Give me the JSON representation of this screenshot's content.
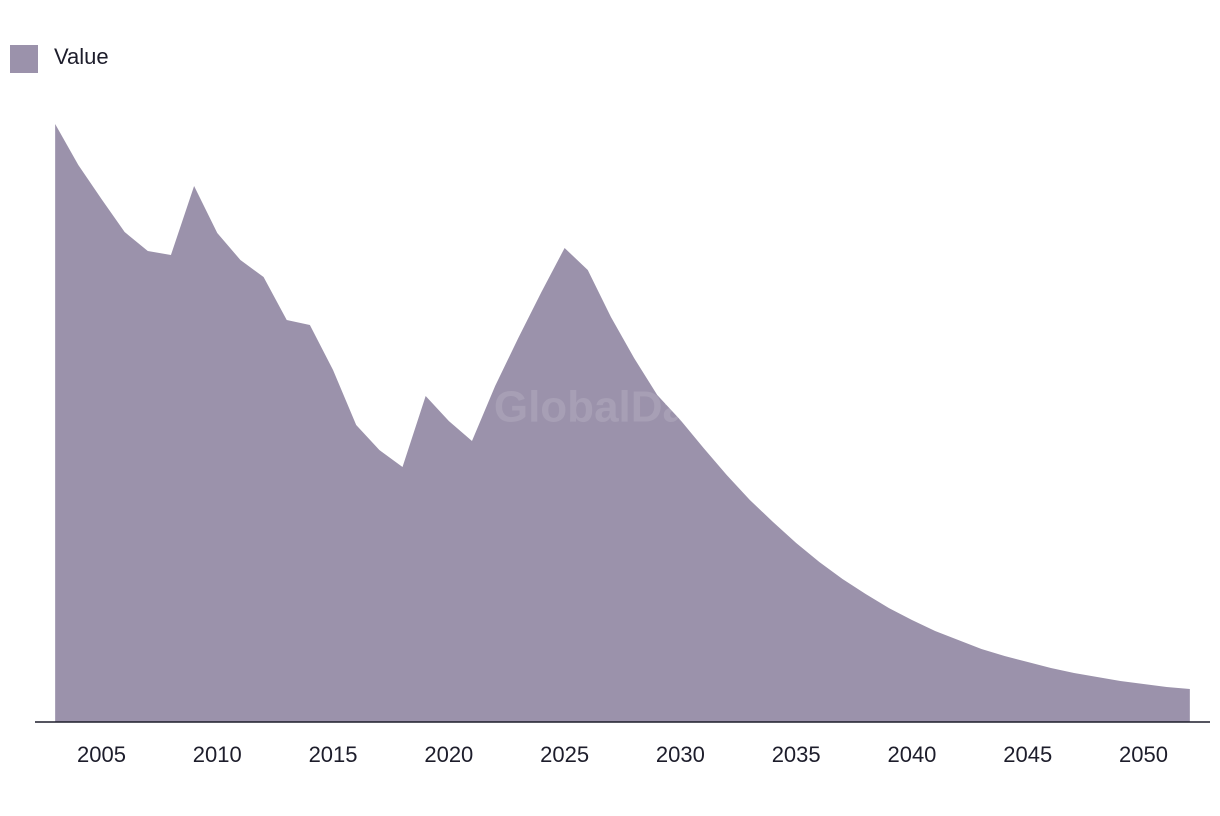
{
  "chart_data": {
    "type": "area",
    "watermark": "GlobalData",
    "x": [
      2003,
      2004,
      2005,
      2006,
      2007,
      2008,
      2009,
      2010,
      2011,
      2012,
      2013,
      2014,
      2015,
      2016,
      2017,
      2018,
      2019,
      2020,
      2021,
      2022,
      2023,
      2024,
      2025,
      2026,
      2027,
      2028,
      2029,
      2030,
      2031,
      2032,
      2033,
      2034,
      2035,
      2036,
      2037,
      2038,
      2039,
      2040,
      2041,
      2042,
      2043,
      2044,
      2045,
      2046,
      2047,
      2048,
      2049,
      2050,
      2051,
      2052
    ],
    "series": [
      {
        "name": "Value",
        "color": "#9b92ab",
        "values": [
          598,
          557,
          523,
          490,
          471,
          467,
          536,
          489,
          462,
          445,
          402,
          397,
          352,
          297,
          272,
          255,
          326,
          301,
          281,
          336,
          384,
          430,
          474,
          452,
          405,
          364,
          327,
          302,
          274,
          247,
          222,
          200,
          179,
          160,
          143,
          128,
          114,
          102,
          91,
          82,
          73,
          66,
          60,
          54,
          49,
          45,
          41,
          38,
          35,
          33
        ]
      }
    ],
    "xlim": [
      2002,
      2053
    ],
    "xticks": [
      2005,
      2010,
      2015,
      2020,
      2025,
      2030,
      2035,
      2040,
      2045,
      2050
    ],
    "ylim": [
      0,
      600
    ],
    "legend": "top-left"
  }
}
